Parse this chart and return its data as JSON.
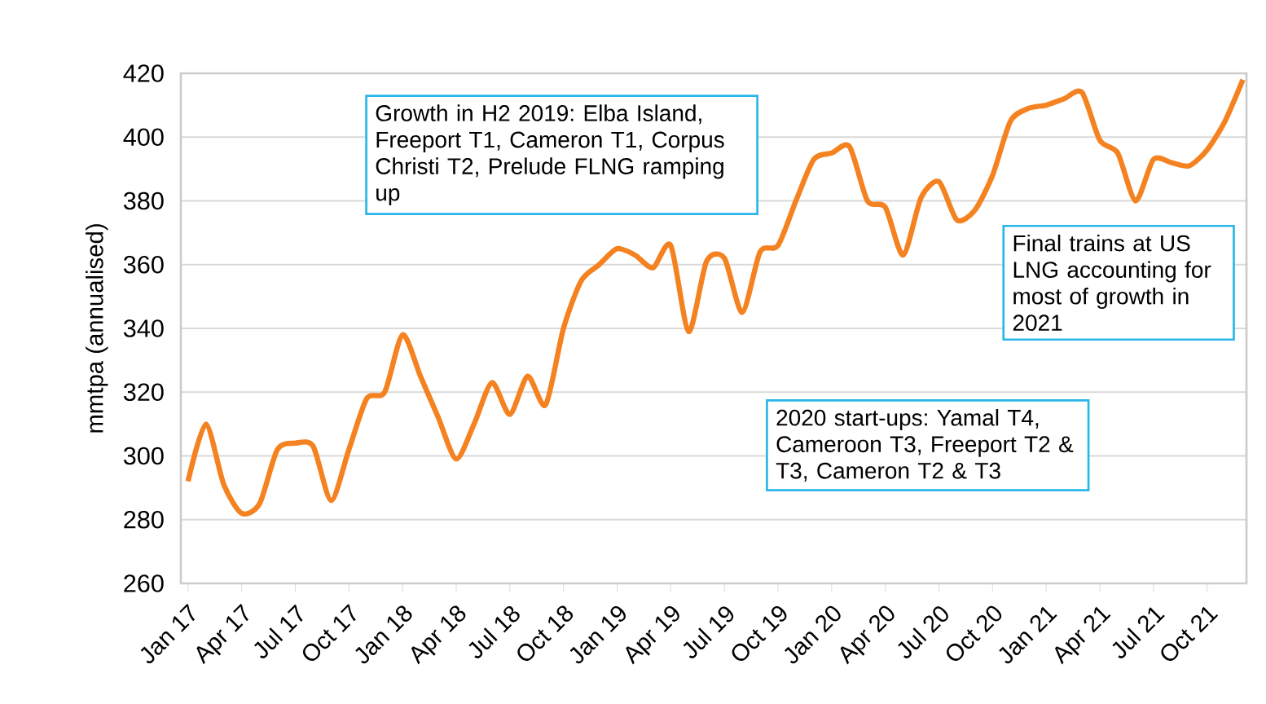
{
  "chart_data": {
    "type": "line",
    "ylabel": "mmtpa (annualised)",
    "categories": [
      "Jan 17",
      null,
      null,
      "Apr 17",
      null,
      null,
      "Jul 17",
      null,
      null,
      "Oct 17",
      null,
      null,
      "Jan 18",
      null,
      null,
      "Apr 18",
      null,
      null,
      "Jul 18",
      null,
      null,
      "Oct 18",
      null,
      null,
      "Jan 19",
      null,
      null,
      "Apr 19",
      null,
      null,
      "Jul 19",
      null,
      null,
      "Oct 19",
      null,
      null,
      "Jan 20",
      null,
      null,
      "Apr 20",
      null,
      null,
      "Jul 20",
      null,
      null,
      "Oct 20",
      null,
      null,
      "Jan 21",
      null,
      null,
      "Apr 21",
      null,
      null,
      "Jul 21",
      null,
      null,
      "Oct 21",
      null,
      null
    ],
    "series": [
      {
        "color": "#f58220",
        "values": [
          292,
          310,
          291,
          282,
          285,
          302,
          304,
          303,
          286,
          302,
          318,
          320,
          338,
          325,
          312,
          299,
          310,
          323,
          313,
          325,
          316,
          340,
          355,
          360,
          365,
          363,
          359,
          366,
          339,
          361,
          362,
          345,
          364,
          366,
          380,
          393,
          395,
          397,
          380,
          378,
          363,
          381,
          386,
          374,
          377,
          388,
          405,
          409,
          410,
          412,
          414,
          399,
          395,
          380,
          393,
          392,
          391,
          396,
          405,
          418
        ]
      }
    ],
    "ylim": [
      260,
      420
    ],
    "yticks": [
      260,
      280,
      300,
      320,
      340,
      360,
      380,
      400,
      420
    ],
    "grid": "y",
    "marker": "none",
    "line_style": "solid",
    "annotations": [
      "Growth in H2 2019: Elba Island, Freeport T1, Cameron T1, Corpus Christi T2, Prelude FLNG ramping up",
      "2020 start-ups: Yamal T4, Cameroon T3, Freeport T2 & T3, Cameron T2 & T3",
      "Final trains at US LNG accounting for most of growth in 2021"
    ]
  }
}
